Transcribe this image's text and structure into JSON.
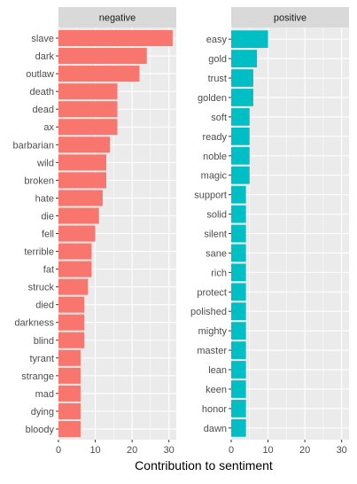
{
  "chart_data": {
    "type": "bar",
    "orientation": "horizontal",
    "xlabel": "Contribution to sentiment",
    "xlim": [
      0,
      32
    ],
    "x_ticks": [
      0,
      10,
      20,
      30
    ],
    "grid": true,
    "panels": [
      {
        "name": "negative",
        "color": "#F8766D",
        "categories": [
          "slave",
          "dark",
          "outlaw",
          "death",
          "dead",
          "ax",
          "barbarian",
          "wild",
          "broken",
          "hate",
          "die",
          "fell",
          "terrible",
          "fat",
          "struck",
          "died",
          "darkness",
          "blind",
          "tyrant",
          "strange",
          "mad",
          "dying",
          "bloody"
        ],
        "values": [
          31,
          24,
          22,
          16,
          16,
          16,
          14,
          13,
          13,
          12,
          11,
          10,
          9,
          9,
          8,
          7,
          7,
          7,
          6,
          6,
          6,
          6,
          6
        ]
      },
      {
        "name": "positive",
        "color": "#00BFC4",
        "categories": [
          "easy",
          "gold",
          "trust",
          "golden",
          "soft",
          "ready",
          "noble",
          "magic",
          "support",
          "solid",
          "silent",
          "sane",
          "rich",
          "protect",
          "polished",
          "mighty",
          "master",
          "lean",
          "keen",
          "honor",
          "dawn"
        ],
        "values": [
          10,
          7,
          6,
          6,
          5,
          5,
          5,
          5,
          4,
          4,
          4,
          4,
          4,
          4,
          4,
          4,
          4,
          4,
          4,
          4,
          4
        ]
      }
    ]
  }
}
